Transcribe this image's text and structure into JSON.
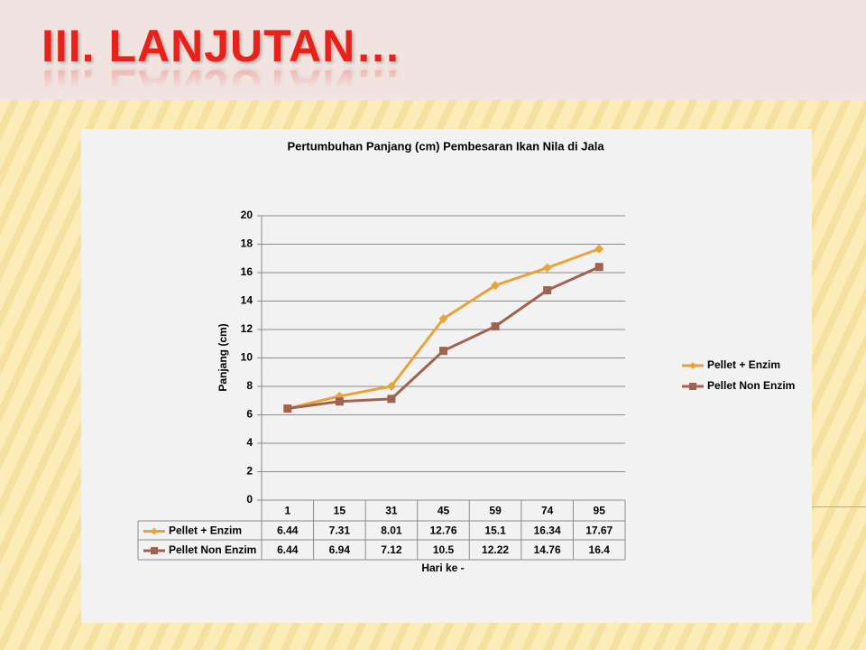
{
  "slide_title": "III. LANJUTAN…",
  "chart_data": {
    "type": "line",
    "title": "Pertumbuhan Panjang (cm) Pembesaran Ikan Nila di Jala",
    "y_label": "Panjang (cm)",
    "x_label": "Hari ke -",
    "categories": [
      "1",
      "15",
      "31",
      "45",
      "59",
      "74",
      "95"
    ],
    "series": [
      {
        "name": "Pellet + Enzim",
        "color": "#e8a33a",
        "marker": "diamond",
        "values": [
          6.44,
          7.31,
          8.01,
          12.76,
          15.1,
          16.34,
          17.67
        ]
      },
      {
        "name": "Pellet Non Enzim",
        "color": "#a0634f",
        "marker": "square",
        "values": [
          6.44,
          6.94,
          7.12,
          10.5,
          12.22,
          14.76,
          16.4
        ]
      }
    ],
    "ylim": [
      0,
      20
    ],
    "yticks": [
      0,
      2,
      4,
      6,
      8,
      10,
      12,
      14,
      16,
      18,
      20
    ],
    "grid": true,
    "legend": "right"
  }
}
